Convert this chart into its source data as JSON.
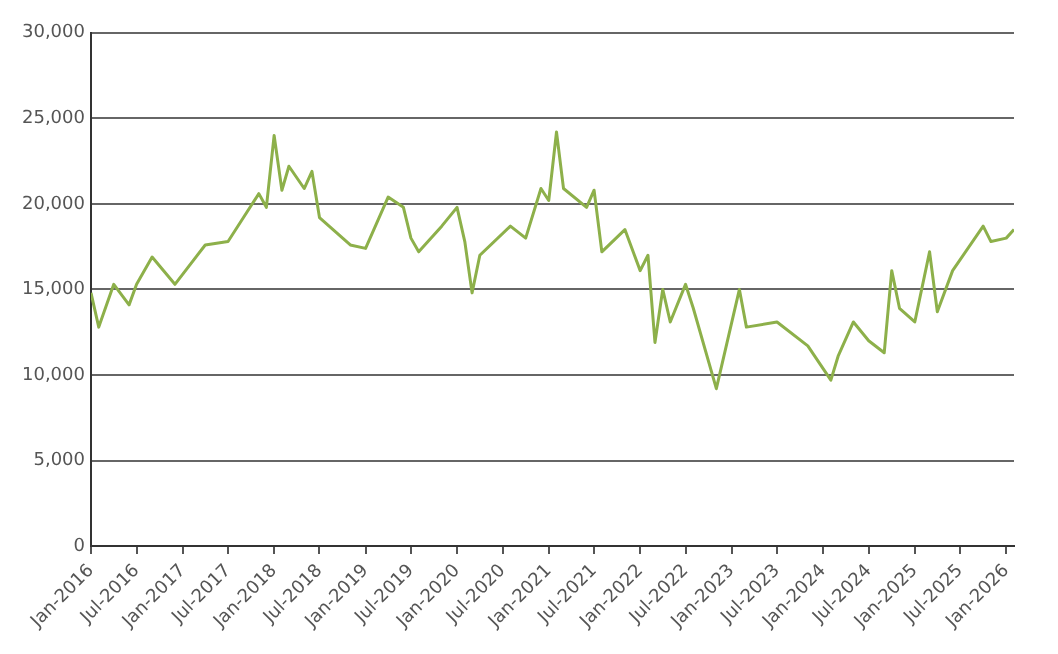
{
  "chart_data": {
    "type": "line",
    "x": [
      "2016-01",
      "2016-02",
      "2016-04",
      "2016-06",
      "2016-07",
      "2016-09",
      "2016-12",
      "2017-04",
      "2017-07",
      "2017-11",
      "2017-12",
      "2018-01",
      "2018-02",
      "2018-03",
      "2018-05",
      "2018-06",
      "2018-07",
      "2018-11",
      "2019-01",
      "2019-04",
      "2019-06",
      "2019-07",
      "2019-08",
      "2019-11",
      "2020-01",
      "2020-02",
      "2020-03",
      "2020-04",
      "2020-08",
      "2020-10",
      "2020-12",
      "2021-01",
      "2021-02",
      "2021-03",
      "2021-06",
      "2021-07",
      "2021-08",
      "2021-11",
      "2022-01",
      "2022-02",
      "2022-03",
      "2022-04",
      "2022-05",
      "2022-07",
      "2022-08",
      "2022-11",
      "2023-02",
      "2023-03",
      "2023-07",
      "2023-11",
      "2024-02",
      "2024-03",
      "2024-05",
      "2024-07",
      "2024-09",
      "2024-10",
      "2024-11",
      "2025-01",
      "2025-03",
      "2025-04",
      "2025-06",
      "2025-10",
      "2025-11",
      "2026-01",
      "2026-02"
    ],
    "series": [
      {
        "color": "#8db04a",
        "values": [
          14800,
          12800,
          15300,
          14100,
          15300,
          16900,
          15300,
          17600,
          17800,
          20600,
          19800,
          24000,
          20800,
          22200,
          20900,
          21900,
          19200,
          17600,
          17400,
          20400,
          19800,
          18000,
          17200,
          18700,
          19800,
          17800,
          14800,
          17000,
          18700,
          18000,
          20900,
          20200,
          24200,
          20900,
          19800,
          20800,
          17200,
          18500,
          16100,
          17000,
          11900,
          15000,
          13100,
          15300,
          13900,
          9200,
          15000,
          12800,
          13100,
          11700,
          9700,
          11100,
          13100,
          12000,
          11300,
          16100,
          13900,
          13100,
          17200,
          13700,
          16100,
          18700,
          17800,
          18000,
          18500
        ]
      }
    ],
    "xlim": [
      "2016-01",
      "2026-02"
    ],
    "xticks": [
      {
        "value": "2016-01",
        "label": "Jan-2016"
      },
      {
        "value": "2016-07",
        "label": "Jul-2016"
      },
      {
        "value": "2017-01",
        "label": "Jan-2017"
      },
      {
        "value": "2017-07",
        "label": "Jul-2017"
      },
      {
        "value": "2018-01",
        "label": "Jan-2018"
      },
      {
        "value": "2018-07",
        "label": "Jul-2018"
      },
      {
        "value": "2019-01",
        "label": "Jan-2019"
      },
      {
        "value": "2019-07",
        "label": "Jul-2019"
      },
      {
        "value": "2020-01",
        "label": "Jan-2020"
      },
      {
        "value": "2020-07",
        "label": "Jul-2020"
      },
      {
        "value": "2021-01",
        "label": "Jan-2021"
      },
      {
        "value": "2021-07",
        "label": "Jul-2021"
      },
      {
        "value": "2022-01",
        "label": "Jan-2022"
      },
      {
        "value": "2022-07",
        "label": "Jul-2022"
      },
      {
        "value": "2023-01",
        "label": "Jan-2023"
      },
      {
        "value": "2023-07",
        "label": "Jul-2023"
      },
      {
        "value": "2024-01",
        "label": "Jan-2024"
      },
      {
        "value": "2024-07",
        "label": "Jul-2024"
      },
      {
        "value": "2025-01",
        "label": "Jan-2025"
      },
      {
        "value": "2025-07",
        "label": "Jul-2025"
      },
      {
        "value": "2026-01",
        "label": "Jan-2026"
      }
    ],
    "ylim": [
      0,
      30000
    ],
    "yticks": [
      {
        "value": 0,
        "label": "0"
      },
      {
        "value": 5000,
        "label": "5,000"
      },
      {
        "value": 10000,
        "label": "10,000"
      },
      {
        "value": 15000,
        "label": "15,000"
      },
      {
        "value": 20000,
        "label": "20,000"
      },
      {
        "value": 25000,
        "label": "25,000"
      },
      {
        "value": 30000,
        "label": "30,000"
      }
    ],
    "grid": "y",
    "legend": false,
    "marker": "none",
    "line_style": "solid"
  }
}
